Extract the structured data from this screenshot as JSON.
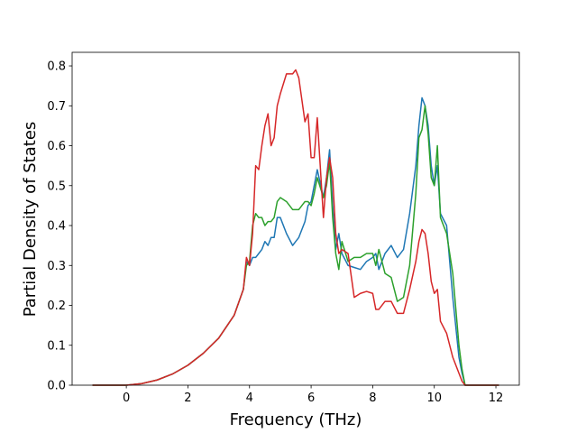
{
  "chart_data": {
    "type": "line",
    "xlabel": "Frequency (THz)",
    "ylabel": "Partial Density of States",
    "x": [
      -1.1,
      -0.5,
      0,
      0.5,
      1,
      1.5,
      2,
      2.5,
      3,
      3.5,
      3.8,
      3.9,
      4.0,
      4.1,
      4.2,
      4.3,
      4.4,
      4.5,
      4.6,
      4.7,
      4.8,
      4.9,
      5.0,
      5.2,
      5.4,
      5.5,
      5.6,
      5.8,
      5.9,
      6.0,
      6.1,
      6.2,
      6.4,
      6.5,
      6.6,
      6.7,
      6.8,
      6.9,
      7.0,
      7.2,
      7.4,
      7.6,
      7.8,
      8.0,
      8.1,
      8.2,
      8.4,
      8.6,
      8.8,
      9.0,
      9.2,
      9.4,
      9.5,
      9.6,
      9.7,
      9.8,
      9.9,
      10.0,
      10.1,
      10.2,
      10.4,
      10.6,
      10.8,
      10.9,
      11.0,
      12.1
    ],
    "series": [
      {
        "color": "#1f77b4",
        "values": [
          0,
          0,
          0,
          0.004,
          0.013,
          0.028,
          0.05,
          0.08,
          0.118,
          0.175,
          0.24,
          0.31,
          0.3,
          0.32,
          0.32,
          0.33,
          0.34,
          0.36,
          0.35,
          0.37,
          0.37,
          0.42,
          0.42,
          0.38,
          0.35,
          0.36,
          0.37,
          0.41,
          0.45,
          0.46,
          0.5,
          0.54,
          0.47,
          0.52,
          0.59,
          0.45,
          0.34,
          0.38,
          0.33,
          0.3,
          0.295,
          0.29,
          0.31,
          0.32,
          0.33,
          0.29,
          0.33,
          0.35,
          0.32,
          0.34,
          0.43,
          0.55,
          0.65,
          0.72,
          0.7,
          0.65,
          0.55,
          0.5,
          0.55,
          0.43,
          0.4,
          0.22,
          0.07,
          0.03,
          0,
          0
        ]
      },
      {
        "color": "#2ca02c",
        "values": [
          0,
          0,
          0,
          0.004,
          0.013,
          0.028,
          0.05,
          0.08,
          0.118,
          0.175,
          0.24,
          0.3,
          0.31,
          0.4,
          0.43,
          0.42,
          0.42,
          0.4,
          0.41,
          0.41,
          0.42,
          0.46,
          0.47,
          0.46,
          0.44,
          0.44,
          0.44,
          0.46,
          0.46,
          0.45,
          0.48,
          0.52,
          0.47,
          0.5,
          0.56,
          0.42,
          0.33,
          0.29,
          0.36,
          0.31,
          0.32,
          0.32,
          0.33,
          0.33,
          0.3,
          0.34,
          0.28,
          0.27,
          0.21,
          0.22,
          0.3,
          0.48,
          0.62,
          0.64,
          0.7,
          0.63,
          0.52,
          0.5,
          0.6,
          0.42,
          0.38,
          0.28,
          0.1,
          0.04,
          0,
          0
        ]
      },
      {
        "color": "#d62728",
        "values": [
          0,
          0,
          0,
          0.004,
          0.013,
          0.028,
          0.05,
          0.08,
          0.118,
          0.175,
          0.24,
          0.32,
          0.3,
          0.38,
          0.55,
          0.54,
          0.6,
          0.65,
          0.68,
          0.6,
          0.62,
          0.7,
          0.73,
          0.78,
          0.78,
          0.79,
          0.77,
          0.66,
          0.68,
          0.57,
          0.57,
          0.67,
          0.42,
          0.52,
          0.57,
          0.52,
          0.38,
          0.33,
          0.34,
          0.33,
          0.22,
          0.23,
          0.235,
          0.23,
          0.19,
          0.19,
          0.21,
          0.21,
          0.18,
          0.18,
          0.24,
          0.31,
          0.36,
          0.39,
          0.38,
          0.33,
          0.26,
          0.23,
          0.24,
          0.16,
          0.13,
          0.07,
          0.03,
          0.01,
          0,
          0
        ]
      }
    ],
    "xlim": [
      -1.76,
      12.76
    ],
    "ylim": [
      0,
      0.834
    ],
    "xticks": [
      0,
      2,
      4,
      6,
      8,
      10,
      12
    ],
    "yticks": [
      {
        "value": 0,
        "label": "0.0"
      },
      0.1,
      0.2,
      0.3,
      0.4,
      0.5,
      0.6,
      0.7,
      0.8
    ]
  }
}
